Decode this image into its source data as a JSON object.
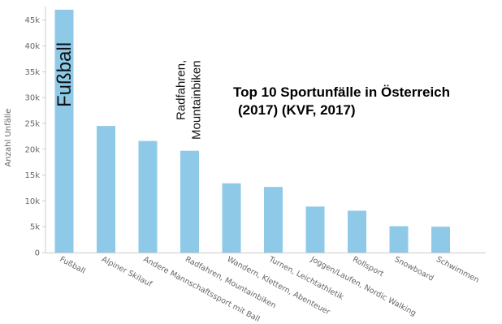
{
  "chart_data": {
    "type": "bar",
    "title_lines": [
      "Top 10 Sportunfälle in Österreich",
      "(2017) (KVF, 2017)"
    ],
    "xlabel": "",
    "ylabel": "Anzahl Unfälle",
    "categories": [
      "Fußball",
      "Alpiner Skilauf",
      "Andere Mannschaftssport mit Ball",
      "Radfahren, Mountainbiken",
      "Wandern, Klettern, Abenteuer",
      "Turnen, Leichtathletik",
      "Joggen/Laufen, Nordic Walking",
      "Rollsport",
      "Snowboard",
      "Schwimmen"
    ],
    "values": [
      47000,
      24500,
      21600,
      19700,
      13400,
      12700,
      8900,
      8100,
      5100,
      5000
    ],
    "ylim": [
      0,
      47000
    ],
    "yticks": [
      0,
      5000,
      10000,
      15000,
      20000,
      25000,
      30000,
      35000,
      40000,
      45000
    ],
    "ytick_labels": [
      "0",
      "5k",
      "10k",
      "15k",
      "20k",
      "25k",
      "30k",
      "35k",
      "40k",
      "45k"
    ],
    "grid": false,
    "bar_color": "#8ecae8",
    "axis_color": "#cccccc",
    "annotations": [
      {
        "category_index": 0,
        "lines": [
          "Fußball"
        ],
        "style": "big"
      },
      {
        "category_index": 3,
        "lines": [
          "Radfahren,",
          "Mountainbiken"
        ],
        "style": "normal"
      }
    ]
  }
}
